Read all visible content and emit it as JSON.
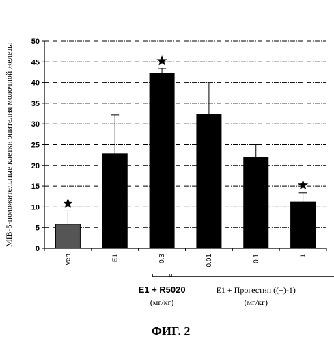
{
  "chart_data": {
    "type": "bar",
    "title": "",
    "ylabel": "MIB-5-положительные клетки эпителия молочной железы",
    "xlabel": "",
    "ylim": [
      0,
      50
    ],
    "yticks": [
      0,
      5,
      10,
      15,
      20,
      25,
      30,
      35,
      40,
      45,
      50
    ],
    "grid": true,
    "categories": [
      "veh",
      "E1",
      "0.3",
      "0.01",
      "0.1",
      "1"
    ],
    "values": [
      5.8,
      22.8,
      42.2,
      32.4,
      22.0,
      11.2
    ],
    "errors": [
      3.2,
      9.4,
      1.2,
      7.5,
      3.0,
      2.2
    ],
    "significant": [
      true,
      false,
      true,
      false,
      false,
      true
    ],
    "bar_colors": [
      "#555555",
      "#000000",
      "#000000",
      "#000000",
      "#000000",
      "#000000"
    ],
    "groups": [
      {
        "label": "E1 + R5020",
        "unit": "(мг/кг)",
        "from": 2,
        "to": 2,
        "style": "sans"
      },
      {
        "label": "E1 + Прогестин ((+)-1)",
        "unit": "(мг/кг)",
        "from": 3,
        "to": 5,
        "style": "serif"
      }
    ]
  },
  "caption": "ФИГ. 2"
}
